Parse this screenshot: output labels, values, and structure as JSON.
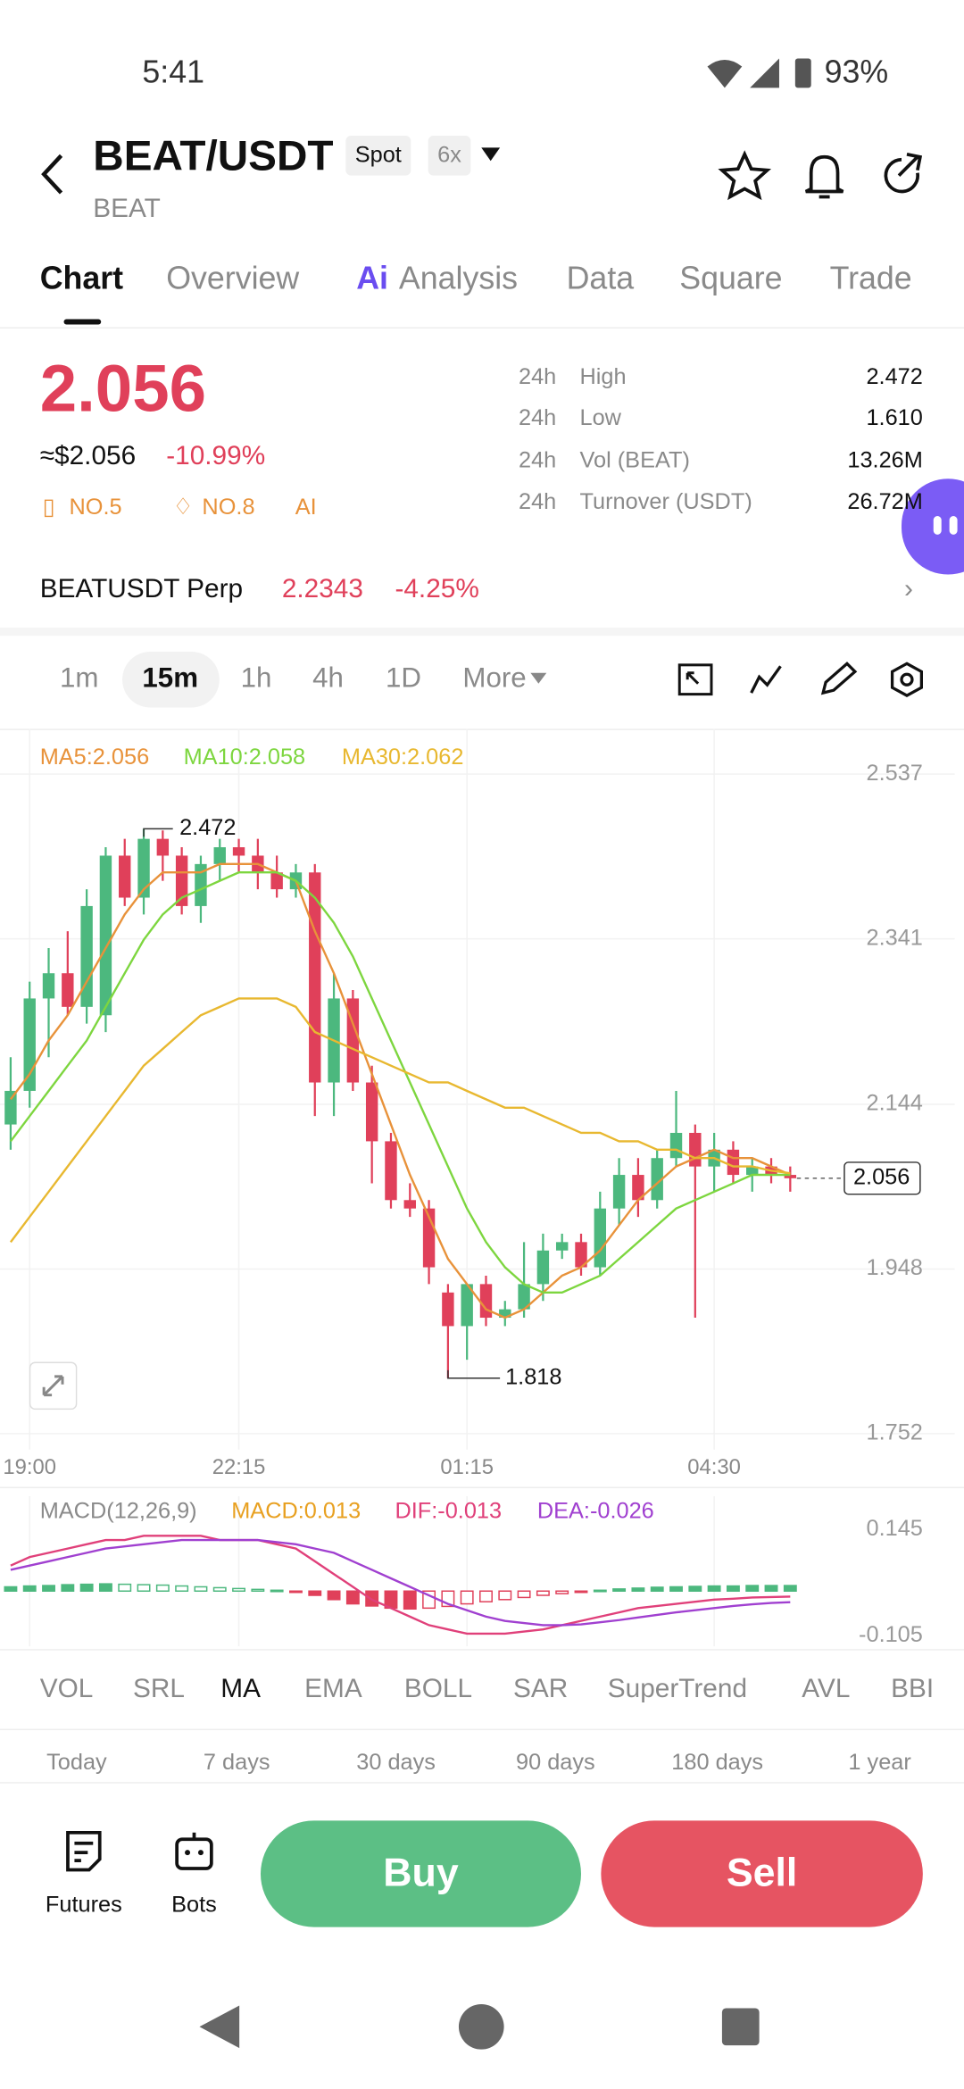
{
  "status_bar": {
    "time": "5:41",
    "battery": "93%"
  },
  "header": {
    "pair": "BEAT/USDT",
    "badges": [
      "Spot",
      "6x"
    ],
    "base": "BEAT"
  },
  "tabs": {
    "ai_badge": "Ai",
    "items": [
      "Chart",
      "Overview",
      "Analysis",
      "Data",
      "Square",
      "Trade"
    ]
  },
  "price": {
    "last": "2.056",
    "usd": "≈$2.056",
    "change": "-10.99%",
    "ranks": [
      "NO.5",
      "NO.8",
      "AI"
    ]
  },
  "stats": [
    {
      "period": "24h",
      "label": "High",
      "value": "2.472"
    },
    {
      "period": "24h",
      "label": "Low",
      "value": "1.610"
    },
    {
      "period": "24h",
      "label": "Vol (BEAT)",
      "value": "13.26M"
    },
    {
      "period": "24h",
      "label": "Turnover (USDT)",
      "value": "26.72M"
    }
  ],
  "perp": {
    "name": "BEATUSDT Perp",
    "price": "2.2343",
    "change": "-4.25%"
  },
  "intervals": [
    "1m",
    "15m",
    "1h",
    "4h",
    "1D",
    "More"
  ],
  "chart_data": [
    {
      "type": "candlestick",
      "categories": [
        null,
        "19:00",
        null,
        null,
        null,
        null,
        null,
        null,
        null,
        null,
        null,
        null,
        "22:15",
        null,
        null,
        null,
        null,
        null,
        null,
        null,
        null,
        null,
        null,
        null,
        "01:15",
        null,
        null,
        null,
        null,
        null,
        null,
        null,
        null,
        null,
        null,
        null,
        null,
        "04:30",
        null,
        null,
        null,
        null
      ],
      "open": [
        2.12,
        2.16,
        2.27,
        2.3,
        2.26,
        2.25,
        2.44,
        2.39,
        2.46,
        2.44,
        2.38,
        2.43,
        2.45,
        2.44,
        2.42,
        2.4,
        2.42,
        2.17,
        2.27,
        2.17,
        2.1,
        2.03,
        2.02,
        1.92,
        1.88,
        1.93,
        1.89,
        1.9,
        1.93,
        1.97,
        1.98,
        1.95,
        2.02,
        2.06,
        2.03,
        2.08,
        2.11,
        2.07,
        2.09,
        2.06,
        2.07,
        2.06
      ],
      "high": [
        2.2,
        2.29,
        2.33,
        2.35,
        2.4,
        2.45,
        2.46,
        2.472,
        2.47,
        2.45,
        2.44,
        2.46,
        2.46,
        2.46,
        2.44,
        2.43,
        2.43,
        2.3,
        2.28,
        2.19,
        2.11,
        2.05,
        2.03,
        1.93,
        1.93,
        1.94,
        1.91,
        1.98,
        1.99,
        1.99,
        1.99,
        2.04,
        2.08,
        2.08,
        2.09,
        2.16,
        2.12,
        2.11,
        2.1,
        2.08,
        2.08,
        2.07
      ],
      "low": [
        2.09,
        2.14,
        2.2,
        2.25,
        2.24,
        2.23,
        2.38,
        2.37,
        2.41,
        2.37,
        2.36,
        2.41,
        2.42,
        2.4,
        2.39,
        2.39,
        2.13,
        2.13,
        2.16,
        2.05,
        2.02,
        2.01,
        1.93,
        1.818,
        1.84,
        1.88,
        1.88,
        1.89,
        1.91,
        1.96,
        1.94,
        1.94,
        2.0,
        2.01,
        2.02,
        2.07,
        1.89,
        2.04,
        2.05,
        2.04,
        2.05,
        2.04
      ],
      "close": [
        2.16,
        2.27,
        2.3,
        2.26,
        2.38,
        2.44,
        2.39,
        2.46,
        2.44,
        2.38,
        2.43,
        2.45,
        2.44,
        2.42,
        2.4,
        2.42,
        2.17,
        2.27,
        2.17,
        2.1,
        2.03,
        2.02,
        1.95,
        1.88,
        1.93,
        1.89,
        1.9,
        1.93,
        1.97,
        1.98,
        1.95,
        2.02,
        2.06,
        2.03,
        2.08,
        2.11,
        2.07,
        2.09,
        2.06,
        2.07,
        2.06,
        2.056
      ],
      "up_color": "#4cb87e",
      "down_color": "#e0405a",
      "series": [
        {
          "name": "MA5:2.056",
          "color": "#e8923a",
          "values": [
            2.15,
            2.18,
            2.22,
            2.25,
            2.29,
            2.33,
            2.37,
            2.4,
            2.42,
            2.42,
            2.42,
            2.43,
            2.43,
            2.43,
            2.42,
            2.41,
            2.35,
            2.3,
            2.24,
            2.18,
            2.12,
            2.06,
            2.01,
            1.96,
            1.93,
            1.9,
            1.89,
            1.9,
            1.92,
            1.94,
            1.95,
            1.97,
            2.0,
            2.03,
            2.05,
            2.07,
            2.08,
            2.09,
            2.08,
            2.08,
            2.07,
            2.06
          ]
        },
        {
          "name": "MA10:2.058",
          "color": "#7dd63f",
          "values": [
            2.1,
            2.13,
            2.16,
            2.19,
            2.22,
            2.26,
            2.3,
            2.34,
            2.37,
            2.39,
            2.4,
            2.41,
            2.42,
            2.42,
            2.42,
            2.41,
            2.39,
            2.36,
            2.32,
            2.27,
            2.22,
            2.17,
            2.12,
            2.07,
            2.02,
            1.98,
            1.95,
            1.93,
            1.92,
            1.92,
            1.93,
            1.94,
            1.96,
            1.98,
            2.0,
            2.02,
            2.03,
            2.04,
            2.05,
            2.06,
            2.06,
            2.06
          ]
        },
        {
          "name": "MA30:2.062",
          "color": "#e8b830",
          "values": [
            1.98,
            2.01,
            2.04,
            2.07,
            2.1,
            2.13,
            2.16,
            2.19,
            2.21,
            2.23,
            2.25,
            2.26,
            2.27,
            2.27,
            2.27,
            2.26,
            2.23,
            2.22,
            2.21,
            2.2,
            2.19,
            2.18,
            2.17,
            2.17,
            2.16,
            2.15,
            2.14,
            2.14,
            2.13,
            2.12,
            2.11,
            2.11,
            2.1,
            2.1,
            2.09,
            2.09,
            2.08,
            2.08,
            2.07,
            2.07,
            2.065,
            2.062
          ]
        }
      ],
      "ylim": [
        1.733,
        2.591
      ],
      "yticks": [
        2.537,
        2.341,
        2.144,
        1.948,
        1.752
      ],
      "grid": true
    },
    {
      "type": "macd",
      "title": "MACD(12,26,9)",
      "series": [
        {
          "name": "MACD:0.013",
          "color": "#e8a020",
          "values": [
            0.01,
            0.012,
            0.013,
            0.015,
            0.016,
            0.017,
            0.016,
            0.015,
            0.014,
            0.012,
            0.01,
            0.008,
            0.006,
            0.004,
            0.002,
            -0.002,
            -0.01,
            -0.02,
            -0.03,
            -0.035,
            -0.04,
            -0.042,
            -0.04,
            -0.036,
            -0.03,
            -0.025,
            -0.02,
            -0.015,
            -0.01,
            -0.006,
            -0.003,
            0.002,
            0.005,
            0.007,
            0.009,
            0.01,
            0.011,
            0.012,
            0.012,
            0.013,
            0.013,
            0.013
          ]
        },
        {
          "name": "DIF:-0.013",
          "color": "#e0407a",
          "values": [
            0.06,
            0.08,
            0.09,
            0.1,
            0.11,
            0.12,
            0.12,
            0.13,
            0.13,
            0.13,
            0.13,
            0.12,
            0.12,
            0.12,
            0.11,
            0.1,
            0.07,
            0.04,
            0.01,
            -0.02,
            -0.04,
            -0.06,
            -0.08,
            -0.09,
            -0.1,
            -0.1,
            -0.1,
            -0.095,
            -0.09,
            -0.08,
            -0.07,
            -0.06,
            -0.05,
            -0.04,
            -0.035,
            -0.03,
            -0.025,
            -0.02,
            -0.018,
            -0.015,
            -0.014,
            -0.013
          ]
        },
        {
          "name": "DEA:-0.026",
          "color": "#a040d0",
          "values": [
            0.05,
            0.06,
            0.07,
            0.08,
            0.09,
            0.1,
            0.105,
            0.11,
            0.115,
            0.12,
            0.12,
            0.12,
            0.12,
            0.12,
            0.115,
            0.11,
            0.1,
            0.09,
            0.07,
            0.05,
            0.03,
            0.01,
            -0.01,
            -0.03,
            -0.045,
            -0.06,
            -0.07,
            -0.075,
            -0.08,
            -0.08,
            -0.078,
            -0.073,
            -0.068,
            -0.062,
            -0.056,
            -0.05,
            -0.045,
            -0.04,
            -0.035,
            -0.031,
            -0.028,
            -0.026
          ]
        }
      ],
      "ylim": [
        -0.13,
        0.223
      ],
      "yticks": [
        0.145,
        -0.105
      ]
    }
  ],
  "indicators": [
    "VOL",
    "SRL",
    "MA",
    "EMA",
    "BOLL",
    "SAR",
    "SuperTrend",
    "AVL",
    "BBI"
  ],
  "ranges": [
    "Today",
    "7 days",
    "30 days",
    "90 days",
    "180 days",
    "1 year"
  ],
  "bottom": {
    "futures": "Futures",
    "bots": "Bots",
    "buy": "Buy",
    "sell": "Sell"
  }
}
